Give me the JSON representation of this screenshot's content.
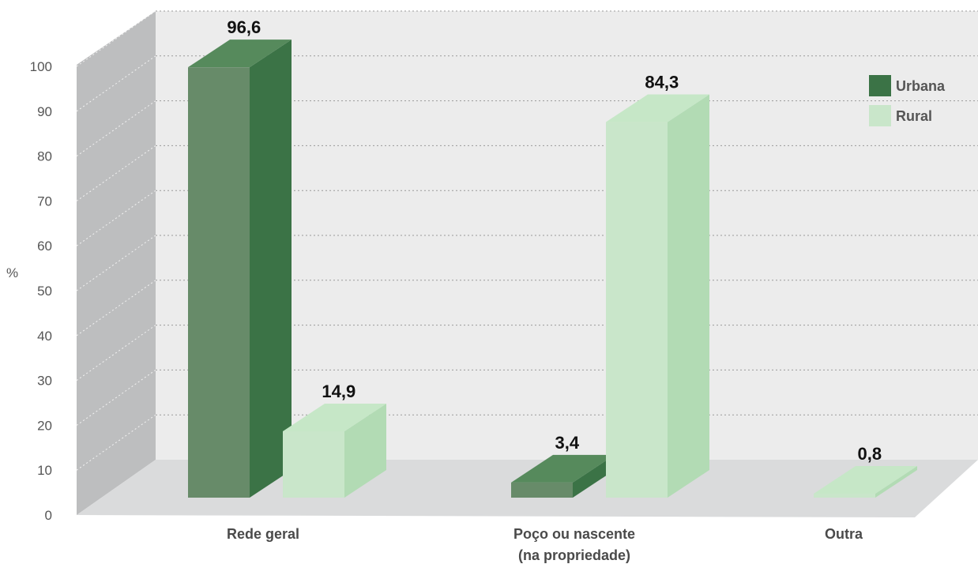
{
  "chart_data": {
    "type": "bar",
    "ylabel": "%",
    "yticks": [
      "0",
      "10",
      "20",
      "30",
      "40",
      "50",
      "60",
      "70",
      "80",
      "90",
      "100"
    ],
    "ylim": [
      0,
      100
    ],
    "grid": true,
    "legend_position": "top-right",
    "categories": [
      {
        "line1": "Rede geral",
        "line2": ""
      },
      {
        "line1": "Poço ou nascente",
        "line2": "(na propriedade)"
      },
      {
        "line1": "Outra",
        "line2": ""
      }
    ],
    "series": [
      {
        "name": "Urbana",
        "values": [
          96.6,
          3.4,
          0
        ],
        "labels": [
          "96,6",
          "3,4",
          ""
        ],
        "front": "#678b69",
        "side": "#3b7346",
        "top": "#568a5c"
      },
      {
        "name": "Rural",
        "values": [
          14.9,
          84.3,
          0.8
        ],
        "labels": [
          "14,9",
          "84,3",
          "0,8"
        ],
        "front": "#c9e6ca",
        "side": "#b2dbb4",
        "top": "#c6e7c7"
      }
    ]
  }
}
